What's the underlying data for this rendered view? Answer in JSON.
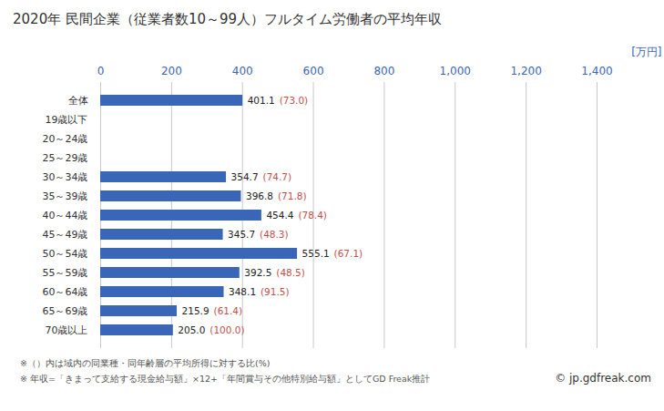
{
  "chart_data": {
    "type": "bar",
    "title": "2020年 民間企業（従業者数10～99人）フルタイム労働者の平均年収",
    "orientation": "horizontal",
    "xlabel": "[万円]",
    "categories": [
      "全体",
      "19歳以下",
      "20～24歳",
      "25～29歳",
      "30～34歳",
      "35～39歳",
      "40～44歳",
      "45～49歳",
      "50～54歳",
      "55～59歳",
      "60～64歳",
      "65～69歳",
      "70歳以上"
    ],
    "values": [
      401.1,
      null,
      null,
      null,
      354.7,
      396.8,
      454.4,
      345.7,
      555.1,
      392.5,
      348.1,
      215.9,
      205.0
    ],
    "value_labels": [
      "401.1",
      null,
      null,
      null,
      "354.7",
      "396.8",
      "454.4",
      "345.7",
      "555.1",
      "392.5",
      "348.1",
      "215.9",
      "205.0"
    ],
    "ratio_labels": [
      "(73.0)",
      null,
      null,
      null,
      "(74.7)",
      "(71.8)",
      "(78.4)",
      "(48.3)",
      "(67.1)",
      "(48.5)",
      "(91.5)",
      "(61.4)",
      "(100.0)"
    ],
    "color": "#3a66b8",
    "xlim": [
      0,
      1400
    ],
    "xticks": [
      0,
      200,
      400,
      600,
      800,
      1000,
      1200,
      1400
    ],
    "grid": true,
    "data_labels": true,
    "notes": [
      "※（）内は域内の同業種・同年齢層の平均所得に対する比(%)",
      "※ 年収=「きまって支給する現金給与額」×12+「年間賞与その他特別給与額」としてGD Freak推計"
    ],
    "credit": "© jp.gdfreak.com"
  }
}
